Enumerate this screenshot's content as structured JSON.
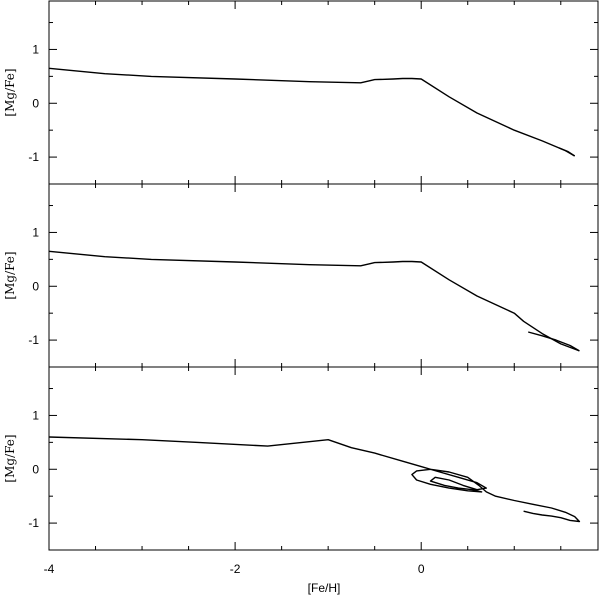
{
  "chart_data": {
    "type": "line",
    "xlabel": "[Fe/H]",
    "xlim": [
      -4,
      1.9
    ],
    "xticks_major": [
      -4,
      -2,
      0
    ],
    "xtick_labels": [
      "-4",
      "-2",
      "0"
    ],
    "xticks_minor_step": 0.5,
    "yticks": [
      1,
      0,
      -1
    ],
    "ytick_labels": [
      "1",
      "0",
      "-1"
    ],
    "grid": false,
    "panels": [
      {
        "ylabel": "[Mg/Fe]",
        "ylim": [
          -1.5,
          1.9
        ],
        "series": [
          {
            "x": [
              -4.0,
              -3.4,
              -2.9,
              -2.0,
              -1.2,
              -0.65,
              -0.55,
              -0.5,
              -0.3,
              -0.2,
              -0.1,
              0.0,
              0.3,
              0.6,
              1.0,
              1.3,
              1.55,
              1.65
            ],
            "y": [
              0.65,
              0.55,
              0.5,
              0.45,
              0.4,
              0.38,
              0.42,
              0.44,
              0.45,
              0.46,
              0.46,
              0.45,
              0.12,
              -0.18,
              -0.5,
              -0.7,
              -0.88,
              -0.98
            ]
          },
          {
            "x": [
              1.48,
              1.58,
              1.65
            ],
            "y": [
              -0.83,
              -0.9,
              -0.98
            ]
          }
        ]
      },
      {
        "ylabel": "[Mg/Fe]",
        "ylim": [
          -1.5,
          1.9
        ],
        "series": [
          {
            "x": [
              -4.0,
              -3.4,
              -2.9,
              -2.0,
              -1.2,
              -0.65,
              -0.55,
              -0.5,
              -0.3,
              -0.2,
              -0.1,
              0.0,
              0.3,
              0.6,
              0.9,
              1.0,
              1.1,
              1.3,
              1.5,
              1.7
            ],
            "y": [
              0.65,
              0.55,
              0.5,
              0.45,
              0.4,
              0.38,
              0.42,
              0.44,
              0.45,
              0.46,
              0.46,
              0.45,
              0.12,
              -0.18,
              -0.42,
              -0.5,
              -0.65,
              -0.88,
              -1.07,
              -1.2
            ]
          },
          {
            "x": [
              1.15,
              1.3,
              1.45,
              1.6,
              1.7
            ],
            "y": [
              -0.85,
              -0.92,
              -1.0,
              -1.1,
              -1.2
            ]
          }
        ]
      },
      {
        "ylabel": "[Mg/Fe]",
        "ylim": [
          -1.5,
          1.9
        ],
        "series": [
          {
            "x": [
              -4.0,
              -3.0,
              -2.4,
              -1.65,
              -1.0,
              -0.75,
              -0.5,
              -0.2,
              0.0,
              0.2,
              0.4,
              0.6,
              0.7,
              0.6,
              0.45,
              0.3,
              0.15,
              0.1,
              0.25,
              0.4,
              0.55,
              0.65,
              0.5,
              0.3,
              0.1,
              -0.05,
              -0.1,
              -0.05,
              0.1,
              0.3,
              0.5,
              0.62,
              0.7,
              0.8,
              1.0,
              1.2,
              1.4,
              1.55,
              1.65,
              1.7,
              1.6,
              1.5,
              1.4,
              1.3,
              1.2,
              1.1
            ],
            "y": [
              0.6,
              0.55,
              0.5,
              0.43,
              0.55,
              0.4,
              0.3,
              0.15,
              0.05,
              -0.05,
              -0.15,
              -0.25,
              -0.35,
              -0.38,
              -0.3,
              -0.2,
              -0.15,
              -0.22,
              -0.3,
              -0.35,
              -0.38,
              -0.42,
              -0.4,
              -0.35,
              -0.28,
              -0.2,
              -0.1,
              -0.03,
              0.0,
              -0.05,
              -0.15,
              -0.3,
              -0.42,
              -0.5,
              -0.58,
              -0.65,
              -0.72,
              -0.8,
              -0.88,
              -0.97,
              -0.95,
              -0.9,
              -0.87,
              -0.85,
              -0.82,
              -0.78
            ]
          }
        ]
      }
    ]
  }
}
